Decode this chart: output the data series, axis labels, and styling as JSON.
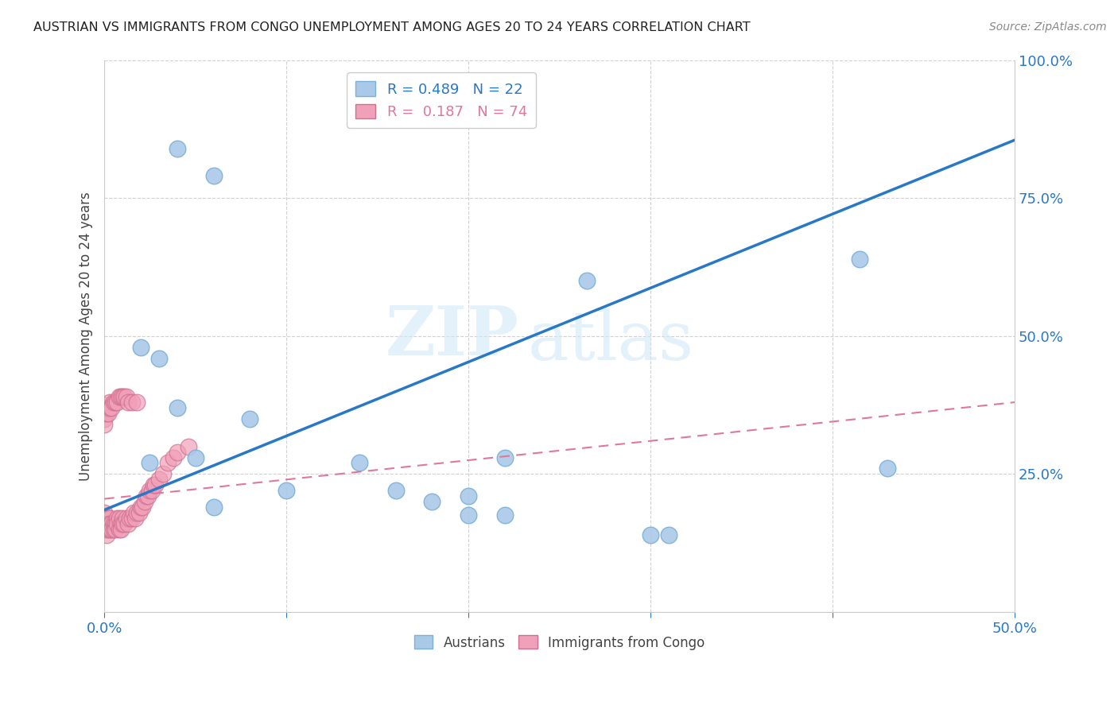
{
  "title": "AUSTRIAN VS IMMIGRANTS FROM CONGO UNEMPLOYMENT AMONG AGES 20 TO 24 YEARS CORRELATION CHART",
  "source": "Source: ZipAtlas.com",
  "ylabel": "Unemployment Among Ages 20 to 24 years",
  "xlim": [
    0.0,
    0.5
  ],
  "ylim": [
    0.0,
    1.0
  ],
  "xticks": [
    0.0,
    0.1,
    0.2,
    0.3,
    0.4,
    0.5
  ],
  "xticklabels": [
    "0.0%",
    "",
    "",
    "",
    "",
    "50.0%"
  ],
  "yticks": [
    0.0,
    0.25,
    0.5,
    0.75,
    1.0
  ],
  "yticklabels": [
    "",
    "25.0%",
    "50.0%",
    "75.0%",
    "100.0%"
  ],
  "austrians_R": 0.489,
  "austrians_N": 22,
  "congo_R": 0.187,
  "congo_N": 74,
  "austrians_color": "#aac9e8",
  "congo_color": "#f0a0b8",
  "trendline_austrians_color": "#2878c8",
  "trendline_congo_color": "#e07898",
  "watermark_zip": "ZIP",
  "watermark_atlas": "atlas",
  "background_color": "#ffffff",
  "grid_color": "#cccccc",
  "austrians_x": [
    0.04,
    0.06,
    0.02,
    0.025,
    0.03,
    0.04,
    0.05,
    0.06,
    0.08,
    0.1,
    0.14,
    0.16,
    0.18,
    0.2,
    0.22,
    0.2,
    0.22,
    0.3,
    0.31,
    0.415,
    0.43,
    0.265
  ],
  "austrians_y": [
    0.84,
    0.79,
    0.48,
    0.27,
    0.46,
    0.37,
    0.28,
    0.19,
    0.35,
    0.22,
    0.27,
    0.22,
    0.2,
    0.21,
    0.28,
    0.175,
    0.175,
    0.14,
    0.14,
    0.64,
    0.26,
    0.6
  ],
  "congo_x": [
    0.0,
    0.0,
    0.0,
    0.0,
    0.001,
    0.001,
    0.001,
    0.001,
    0.002,
    0.002,
    0.002,
    0.003,
    0.003,
    0.003,
    0.004,
    0.004,
    0.005,
    0.005,
    0.006,
    0.006,
    0.007,
    0.007,
    0.008,
    0.008,
    0.009,
    0.009,
    0.01,
    0.01,
    0.011,
    0.012,
    0.013,
    0.014,
    0.015,
    0.016,
    0.017,
    0.018,
    0.019,
    0.02,
    0.021,
    0.022,
    0.023,
    0.024,
    0.025,
    0.026,
    0.027,
    0.028,
    0.03,
    0.032,
    0.035,
    0.038,
    0.04,
    0.046,
    0.0,
    0.0,
    0.0,
    0.0,
    0.001,
    0.001,
    0.002,
    0.002,
    0.003,
    0.003,
    0.004,
    0.005,
    0.006,
    0.007,
    0.008,
    0.009,
    0.01,
    0.011,
    0.012,
    0.013,
    0.015,
    0.018
  ],
  "congo_y": [
    0.18,
    0.17,
    0.16,
    0.15,
    0.17,
    0.16,
    0.15,
    0.14,
    0.17,
    0.16,
    0.15,
    0.17,
    0.16,
    0.15,
    0.16,
    0.15,
    0.16,
    0.15,
    0.16,
    0.15,
    0.17,
    0.16,
    0.17,
    0.15,
    0.16,
    0.15,
    0.17,
    0.16,
    0.16,
    0.17,
    0.16,
    0.17,
    0.17,
    0.18,
    0.17,
    0.18,
    0.18,
    0.19,
    0.19,
    0.2,
    0.21,
    0.21,
    0.22,
    0.22,
    0.23,
    0.23,
    0.24,
    0.25,
    0.27,
    0.28,
    0.29,
    0.3,
    0.375,
    0.36,
    0.35,
    0.34,
    0.37,
    0.36,
    0.37,
    0.36,
    0.38,
    0.37,
    0.37,
    0.38,
    0.38,
    0.38,
    0.39,
    0.39,
    0.39,
    0.39,
    0.39,
    0.38,
    0.38,
    0.38
  ],
  "trendline_aus_x0": 0.0,
  "trendline_aus_y0": 0.185,
  "trendline_aus_x1": 0.5,
  "trendline_aus_y1": 0.855,
  "trendline_cng_x0": 0.0,
  "trendline_cng_y0": 0.205,
  "trendline_cng_x1": 0.5,
  "trendline_cng_y1": 0.38
}
